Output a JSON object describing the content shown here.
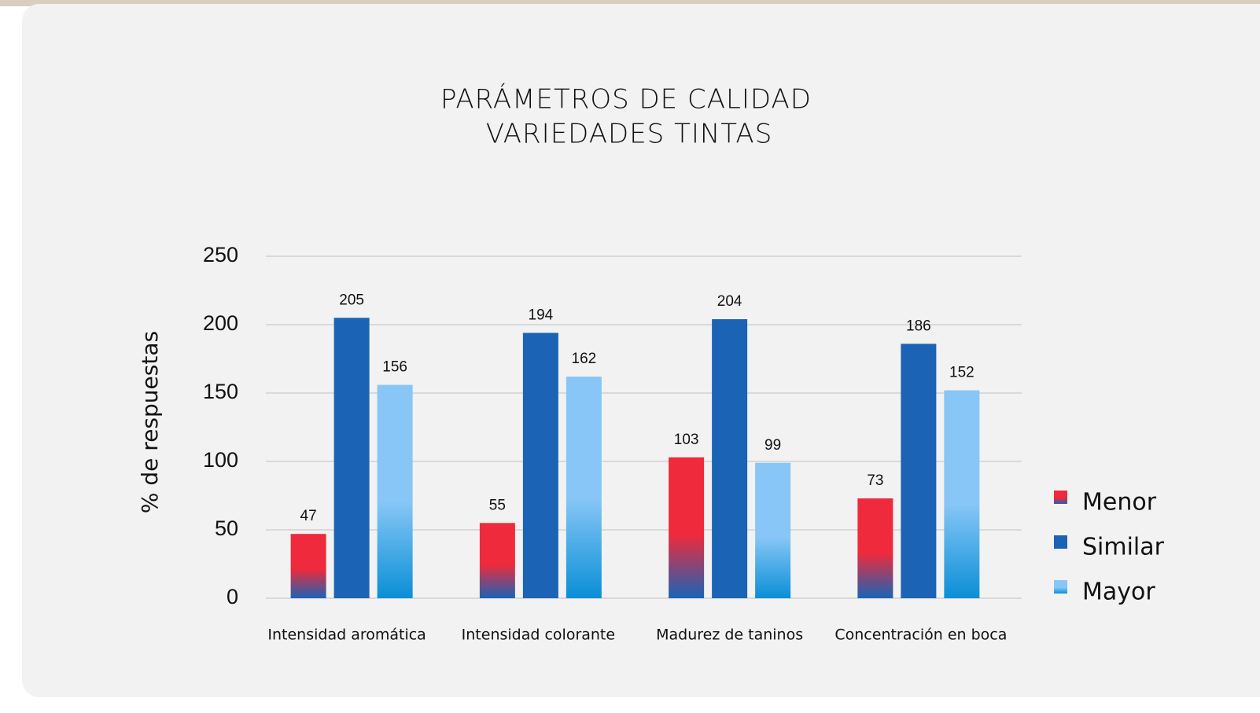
{
  "chart_data": {
    "type": "bar",
    "title": [
      "PARÁMETROS DE CALIDAD",
      "VARIEDADES TINTAS"
    ],
    "y_label": "% de respuestas",
    "categories": [
      "Intensidad aromática",
      "Intensidad colorante",
      "Madurez de taninos",
      "Concentración en boca"
    ],
    "series": [
      {
        "name": "Menor",
        "color": "#ee2a3c",
        "gradient_to": "#1a63b5",
        "values": [
          47,
          55,
          103,
          73
        ]
      },
      {
        "name": "Similar",
        "color": "#1a63b5",
        "values": [
          205,
          194,
          204,
          186
        ]
      },
      {
        "name": "Mayor",
        "color": "#87c6f6",
        "gradient_to": "#0a8fd6",
        "values": [
          156,
          162,
          99,
          152
        ]
      }
    ],
    "ylim": [
      0,
      250
    ],
    "yticks": [
      0,
      50,
      100,
      150,
      200,
      250
    ],
    "grid": true,
    "legend": "right"
  }
}
